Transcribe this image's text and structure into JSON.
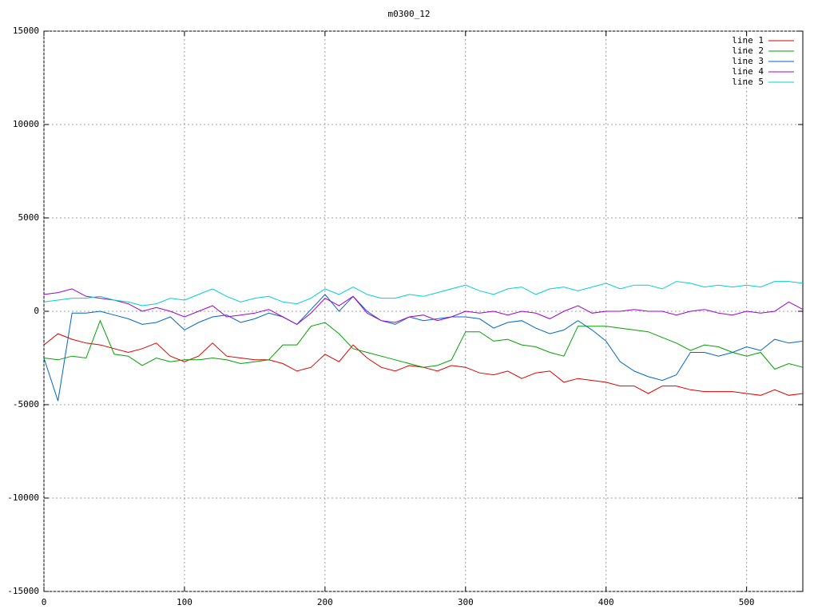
{
  "chart_data": {
    "type": "line",
    "title": "m0300_12",
    "x": [
      0,
      10,
      20,
      30,
      40,
      50,
      60,
      70,
      80,
      90,
      100,
      110,
      120,
      130,
      140,
      150,
      160,
      170,
      180,
      190,
      200,
      210,
      220,
      230,
      240,
      250,
      260,
      270,
      280,
      290,
      300,
      310,
      320,
      330,
      340,
      350,
      360,
      370,
      380,
      390,
      400,
      410,
      420,
      430,
      440,
      450,
      460,
      470,
      480,
      490,
      500,
      510,
      520,
      530,
      540
    ],
    "series": [
      {
        "name": "line 1",
        "color": "#e00000",
        "values": [
          -1800,
          -1200,
          -1500,
          -1700,
          -1800,
          -2000,
          -2200,
          -2000,
          -1700,
          -2400,
          -2700,
          -2400,
          -1700,
          -2400,
          -2500,
          -2600,
          -2600,
          -2800,
          -3200,
          -3000,
          -2300,
          -2700,
          -1800,
          -2500,
          -3000,
          -3200,
          -2900,
          -3000,
          -3200,
          -2900,
          -3000,
          -3300,
          -3400,
          -3200,
          -3600,
          -3300,
          -3200,
          -3800,
          -3600,
          -3700,
          -3800,
          -4000,
          -4000,
          -4400,
          -4000,
          -4000,
          -4200,
          -4300,
          -4300,
          -4300,
          -4400,
          -4500,
          -4200,
          -4500,
          -4400
        ]
      },
      {
        "name": "line 2",
        "color": "#00a000",
        "values": [
          -2500,
          -2600,
          -2400,
          -2500,
          -500,
          -2300,
          -2400,
          -2900,
          -2500,
          -2700,
          -2600,
          -2600,
          -2500,
          -2600,
          -2800,
          -2700,
          -2600,
          -1800,
          -1800,
          -800,
          -600,
          -1200,
          -2000,
          -2200,
          -2400,
          -2600,
          -2800,
          -3000,
          -2900,
          -2600,
          -1100,
          -1100,
          -1600,
          -1500,
          -1800,
          -1900,
          -2200,
          -2400,
          -800,
          -800,
          -800,
          -900,
          -1000,
          -1100,
          -1400,
          -1700,
          -2100,
          -1800,
          -1900,
          -2200,
          -2400,
          -2200,
          -3100,
          -2800,
          -3000
        ]
      },
      {
        "name": "line 3",
        "color": "#0066cc",
        "values": [
          -2500,
          -4800,
          -100,
          -100,
          0,
          -200,
          -400,
          -700,
          -600,
          -300,
          -1000,
          -600,
          -300,
          -200,
          -600,
          -400,
          -100,
          -300,
          -700,
          100,
          900,
          0,
          800,
          0,
          -500,
          -700,
          -300,
          -500,
          -400,
          -300,
          -300,
          -400,
          -900,
          -600,
          -500,
          -900,
          -1200,
          -1000,
          -500,
          -1000,
          -1600,
          -2700,
          -3200,
          -3500,
          -3700,
          -3400,
          -2200,
          -2200,
          -2400,
          -2200,
          -1900,
          -2100,
          -1500,
          -1700,
          -1600
        ]
      },
      {
        "name": "line 4",
        "color": "#a000d0",
        "values": [
          900,
          1000,
          1200,
          800,
          700,
          600,
          400,
          0,
          200,
          0,
          -300,
          0,
          300,
          -300,
          -200,
          -100,
          100,
          -300,
          -700,
          -100,
          700,
          300,
          800,
          -100,
          -500,
          -600,
          -300,
          -200,
          -500,
          -300,
          0,
          -100,
          0,
          -200,
          0,
          -100,
          -400,
          0,
          300,
          -100,
          0,
          0,
          100,
          0,
          0,
          -200,
          0,
          100,
          -100,
          -200,
          0,
          -100,
          0,
          500,
          100
        ]
      },
      {
        "name": "line 5",
        "color": "#00d0d0",
        "values": [
          500,
          600,
          700,
          700,
          800,
          600,
          500,
          300,
          400,
          700,
          600,
          900,
          1200,
          800,
          500,
          700,
          800,
          500,
          400,
          700,
          1200,
          900,
          1300,
          900,
          700,
          700,
          900,
          800,
          1000,
          1200,
          1400,
          1100,
          900,
          1200,
          1300,
          900,
          1200,
          1300,
          1100,
          1300,
          1500,
          1200,
          1400,
          1400,
          1200,
          1600,
          1500,
          1300,
          1400,
          1300,
          1400,
          1300,
          1600,
          1600,
          1500
        ]
      }
    ],
    "xlim": [
      0,
      540
    ],
    "ylim": [
      -15000,
      15000
    ],
    "xticks": [
      0,
      100,
      200,
      300,
      400,
      500
    ],
    "yticks": [
      -15000,
      -10000,
      -5000,
      0,
      5000,
      10000,
      15000
    ],
    "grid": true,
    "legend": "top-right"
  }
}
